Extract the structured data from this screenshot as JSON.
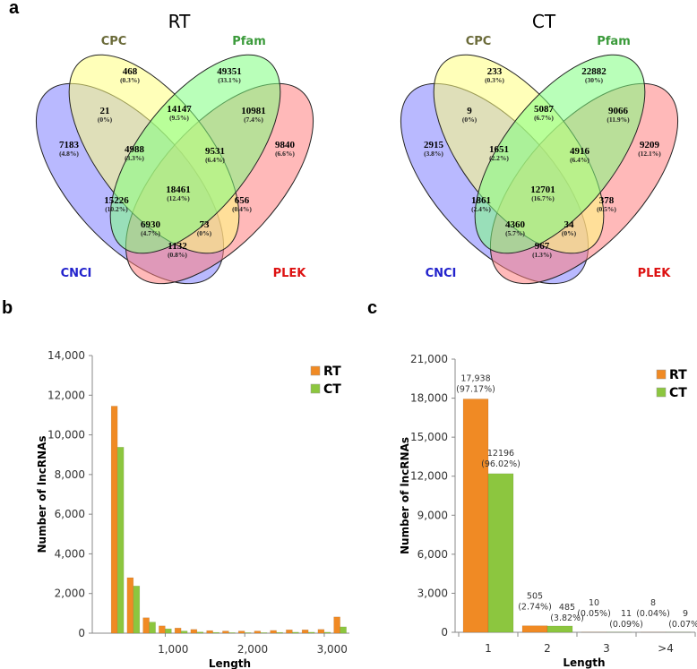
{
  "panels": {
    "a": "a",
    "b": "b",
    "c": "c"
  },
  "venn": [
    {
      "title": "RT",
      "sets": {
        "CPC": "CPC",
        "Pfam": "Pfam",
        "CNCI": "CNCI",
        "PLEK": "PLEK"
      },
      "regions": {
        "CPC": {
          "count": "468",
          "pct": "(0.3%)"
        },
        "Pfam": {
          "count": "49351",
          "pct": "(33.1%)"
        },
        "CNCI_CPC": {
          "count": "21",
          "pct": "(0%)"
        },
        "CPC_Pfam": {
          "count": "14147",
          "pct": "(9.5%)"
        },
        "Pfam_PLEK": {
          "count": "10981",
          "pct": "(7.4%)"
        },
        "CNCI": {
          "count": "7183",
          "pct": "(4.8%)"
        },
        "CNCI_CPC_Pfam": {
          "count": "4988",
          "pct": "(3.3%)"
        },
        "CPC_Pfam_PLEK": {
          "count": "9531",
          "pct": "(6.4%)"
        },
        "PLEK": {
          "count": "9840",
          "pct": "(6.6%)"
        },
        "CNCI_Pfam": {
          "count": "15226",
          "pct": "(10.2%)"
        },
        "ALL": {
          "count": "18461",
          "pct": "(12.4%)"
        },
        "CPC_PLEK": {
          "count": "656",
          "pct": "(0.4%)"
        },
        "CNCI_Pfam_PLEK": {
          "count": "6930",
          "pct": "(4.7%)"
        },
        "CNCI_CPC_PLEK": {
          "count": "73",
          "pct": "(0%)"
        },
        "CNCI_PLEK": {
          "count": "1132",
          "pct": "(0.8%)"
        }
      }
    },
    {
      "title": "CT",
      "sets": {
        "CPC": "CPC",
        "Pfam": "Pfam",
        "CNCI": "CNCI",
        "PLEK": "PLEK"
      },
      "regions": {
        "CPC": {
          "count": "233",
          "pct": "(0.3%)"
        },
        "Pfam": {
          "count": "22882",
          "pct": "(30%)"
        },
        "CNCI_CPC": {
          "count": "9",
          "pct": "(0%)"
        },
        "CPC_Pfam": {
          "count": "5087",
          "pct": "(6.7%)"
        },
        "Pfam_PLEK": {
          "count": "9066",
          "pct": "(11.9%)"
        },
        "CNCI": {
          "count": "2915",
          "pct": "(3.8%)"
        },
        "CNCI_CPC_Pfam": {
          "count": "1651",
          "pct": "(2.2%)"
        },
        "CPC_Pfam_PLEK": {
          "count": "4916",
          "pct": "(6.4%)"
        },
        "PLEK": {
          "count": "9209",
          "pct": "(12.1%)"
        },
        "CNCI_Pfam": {
          "count": "1861",
          "pct": "(2.4%)"
        },
        "ALL": {
          "count": "12701",
          "pct": "(16.7%)"
        },
        "CPC_PLEK": {
          "count": "378",
          "pct": "(0.5%)"
        },
        "CNCI_Pfam_PLEK": {
          "count": "4360",
          "pct": "(5.7%)"
        },
        "CNCI_CPC_PLEK": {
          "count": "34",
          "pct": "(0%)"
        },
        "CNCI_PLEK": {
          "count": "967",
          "pct": "(1.3%)"
        }
      }
    }
  ],
  "colors": {
    "CNCI": "#8080ff",
    "CPC": "#ffff80",
    "Pfam": "#80ff80",
    "PLEK": "#ff8080",
    "CNCI_label": "#2222cc",
    "CPC_label": "#6b6b3a",
    "Pfam_label": "#3a9a3a",
    "PLEK_label": "#dd1111",
    "RT": "#f08a24",
    "CT": "#8cc63f"
  },
  "chart_data": [
    {
      "type": "bar",
      "title": "",
      "xlabel": "Length",
      "ylabel": "Number of lncRNAs",
      "x": [
        300,
        500,
        700,
        900,
        1100,
        1300,
        1500,
        1700,
        1900,
        2100,
        2300,
        2500,
        2700,
        2900,
        3100
      ],
      "series": [
        {
          "name": "RT",
          "values": [
            11450,
            2800,
            780,
            370,
            260,
            190,
            130,
            110,
            110,
            110,
            140,
            170,
            170,
            190,
            820
          ]
        },
        {
          "name": "CT",
          "values": [
            9380,
            2380,
            560,
            220,
            110,
            60,
            40,
            30,
            30,
            30,
            40,
            50,
            50,
            50,
            320
          ]
        }
      ],
      "xlim": [
        0,
        3200
      ],
      "ylim": [
        0,
        14000
      ],
      "xticks": [
        "1,000",
        "2,000",
        "3,000"
      ],
      "xtick_values": [
        1000,
        2000,
        3000
      ],
      "yticks": [
        "0",
        "2,000",
        "4,000",
        "6,000",
        "8,000",
        "10,000",
        "12,000",
        "14,000"
      ],
      "ytick_values": [
        0,
        2000,
        4000,
        6000,
        8000,
        10000,
        12000,
        14000
      ],
      "legend": "top-right",
      "grid": false
    },
    {
      "type": "bar",
      "title": "",
      "xlabel": "Length",
      "ylabel": "Number of lncRNAs",
      "categories": [
        "1",
        "2",
        "3",
        ">4"
      ],
      "series": [
        {
          "name": "RT",
          "values": [
            17938,
            505,
            10,
            8
          ],
          "labels": [
            "17,938",
            "505",
            "10",
            "8"
          ],
          "pcts": [
            "(97.17%)",
            "(2.74%)",
            "(0.05%)",
            "(0.04%)"
          ]
        },
        {
          "name": "CT",
          "values": [
            12196,
            485,
            11,
            9
          ],
          "labels": [
            "12196",
            "485",
            "11",
            "9"
          ],
          "pcts": [
            "(96.02%)",
            "(3.82%)",
            "(0.09%)",
            "(0.07%)"
          ]
        }
      ],
      "ylim": [
        0,
        21000
      ],
      "yticks": [
        "0",
        "3,000",
        "6,000",
        "9,000",
        "12,000",
        "15,000",
        "18,000",
        "21,000"
      ],
      "ytick_values": [
        0,
        3000,
        6000,
        9000,
        12000,
        15000,
        18000,
        21000
      ],
      "legend": "top-right",
      "grid": false
    }
  ]
}
